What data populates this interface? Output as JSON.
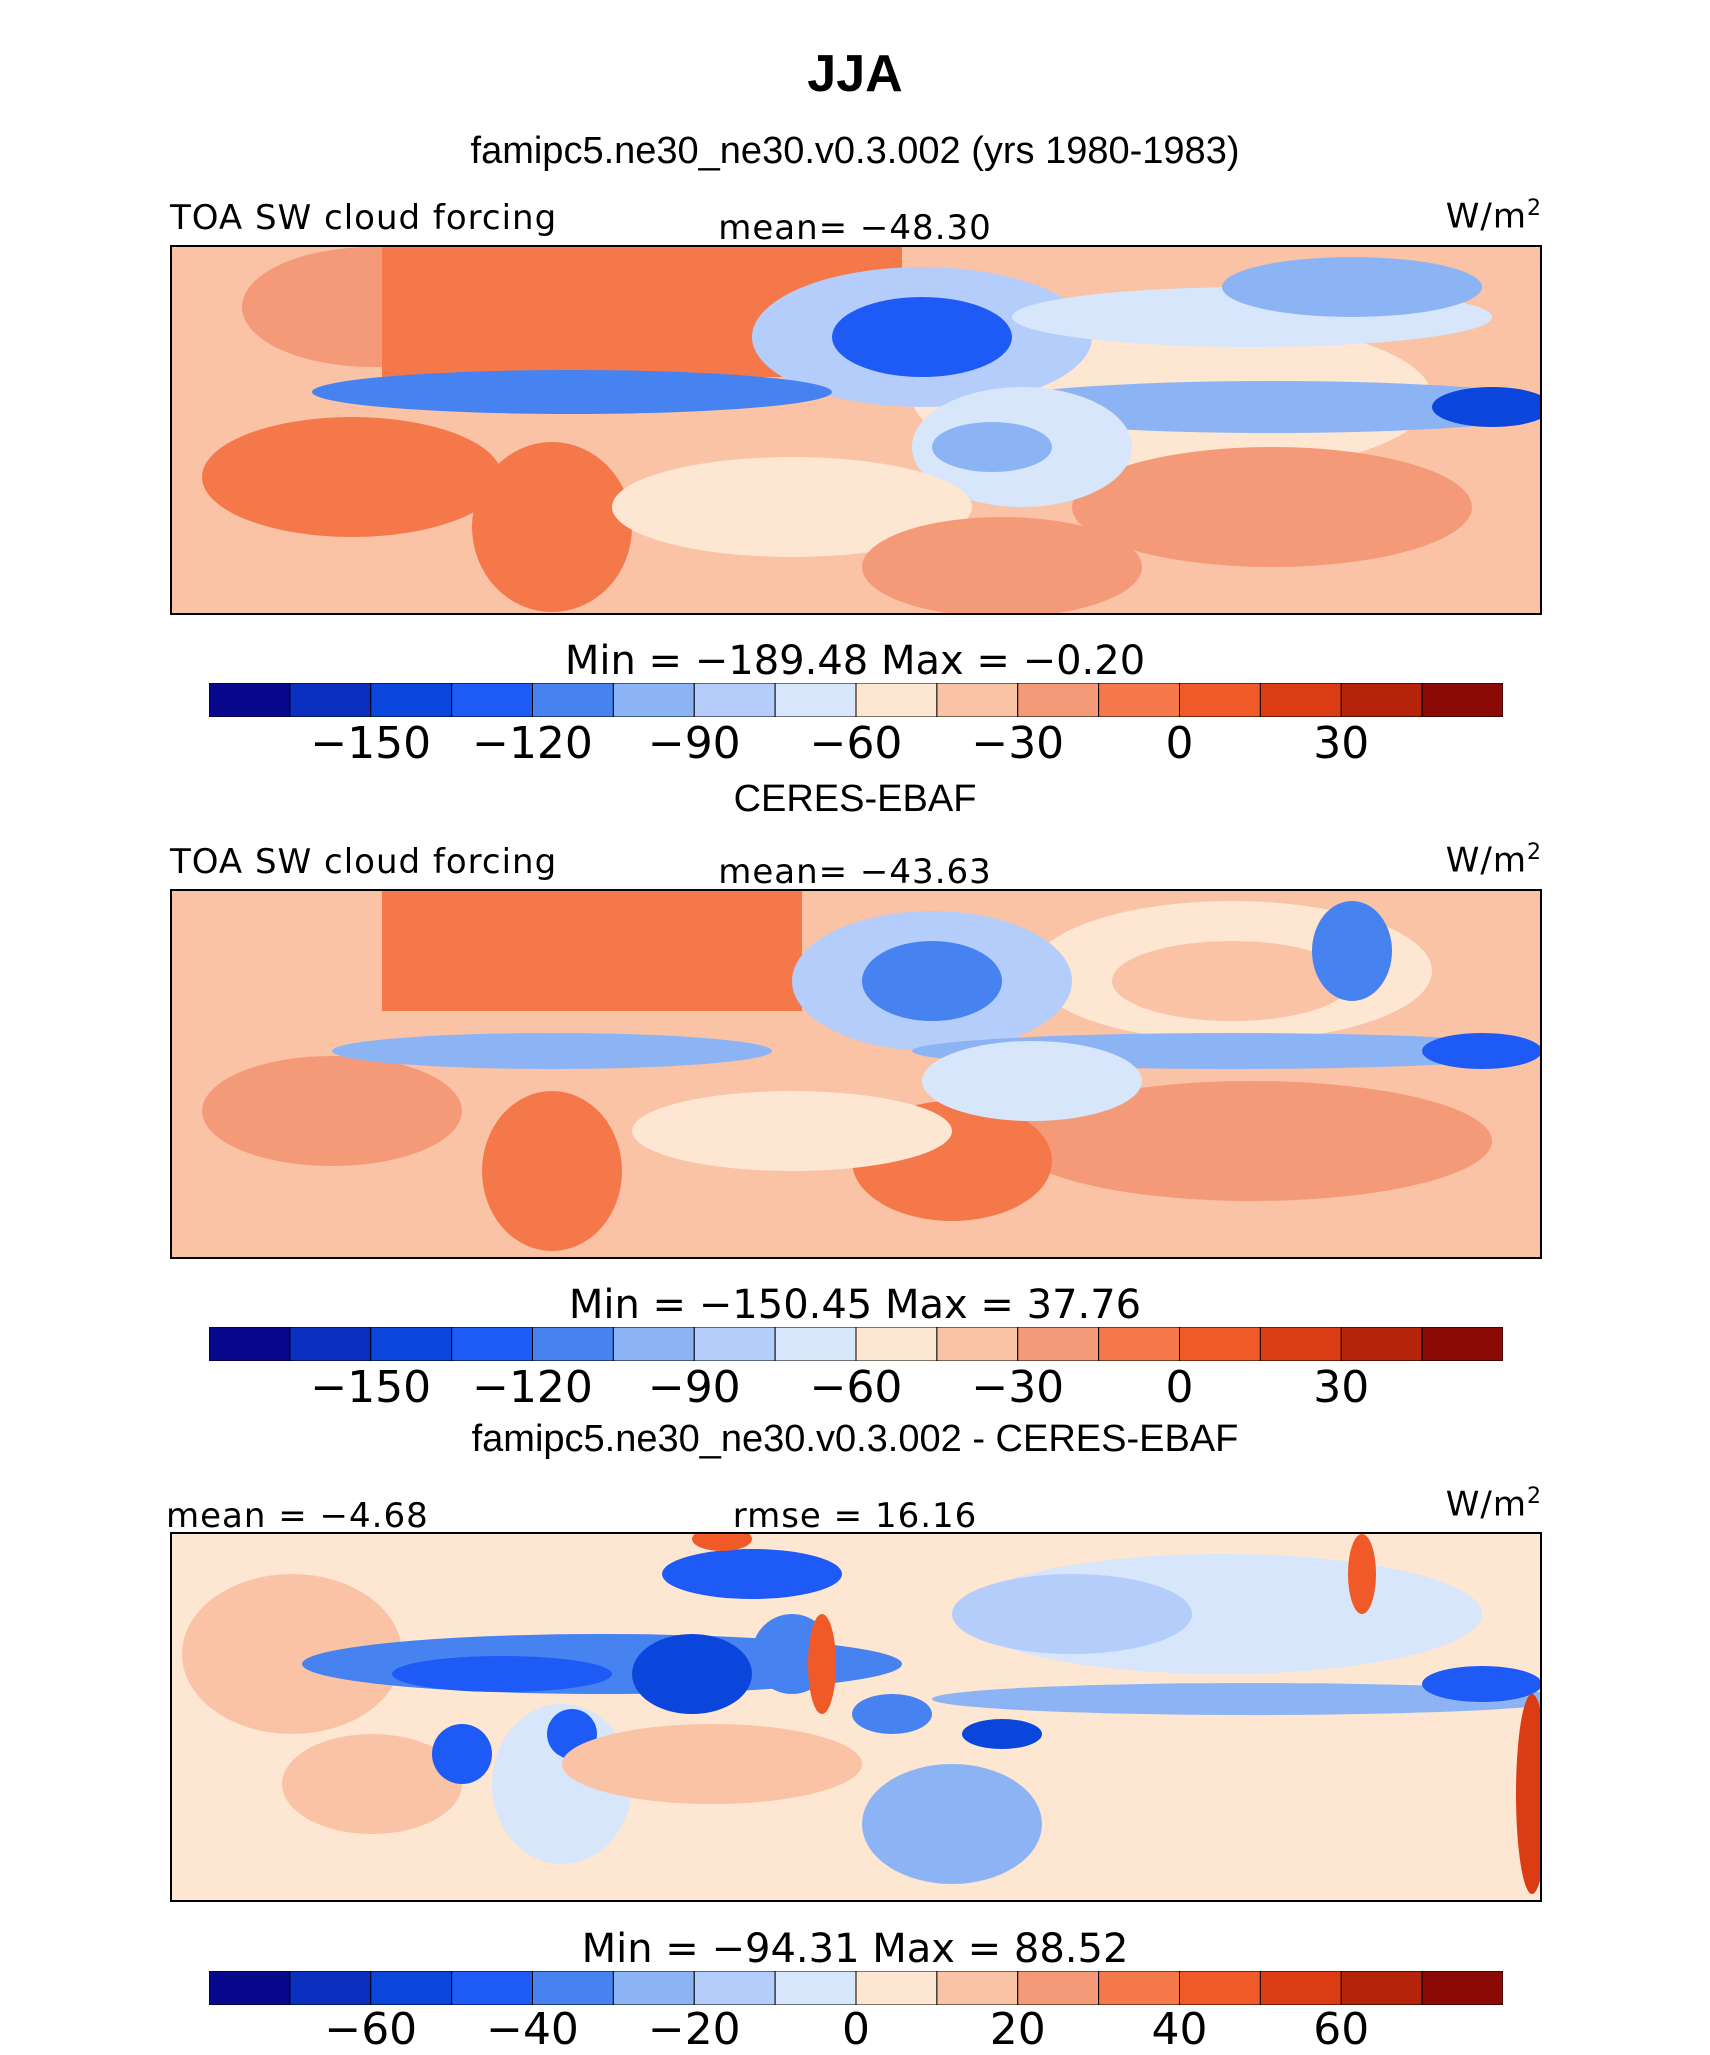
{
  "figure": {
    "title": "JJA",
    "panel1_title": "famipc5.ne30_ne30.v0.3.002 (yrs 1980-1983)",
    "panel2_title": "CERES-EBAF",
    "panel3_title": "famipc5.ne30_ne30.v0.3.002 - CERES-EBAF"
  },
  "chart_data": [
    {
      "type": "heatmap",
      "title": "famipc5.ne30_ne30.v0.3.002 (yrs 1980-1983)",
      "variable": "TOA SW cloud forcing",
      "mean_label": "mean= −48.30",
      "units": "W/m",
      "units_exp": "2",
      "minmax_label": "Min = −189.48 Max = −0.20",
      "min": -189.48,
      "max": -0.2,
      "mean": -48.3,
      "colorbar_ticks": [
        "−150",
        "−120",
        "−90",
        "−60",
        "−30",
        "0",
        "30"
      ],
      "colorbar_tick_values": [
        -150,
        -120,
        -90,
        -60,
        -30,
        0,
        30
      ],
      "colorbar_range": [
        -180,
        60
      ]
    },
    {
      "type": "heatmap",
      "title": "CERES-EBAF",
      "variable": "TOA SW cloud forcing",
      "mean_label": "mean= −43.63",
      "units": "W/m",
      "units_exp": "2",
      "minmax_label": "Min = −150.45 Max = 37.76",
      "min": -150.45,
      "max": 37.76,
      "mean": -43.63,
      "colorbar_ticks": [
        "−150",
        "−120",
        "−90",
        "−60",
        "−30",
        "0",
        "30"
      ],
      "colorbar_tick_values": [
        -150,
        -120,
        -90,
        -60,
        -30,
        0,
        30
      ],
      "colorbar_range": [
        -180,
        60
      ]
    },
    {
      "type": "heatmap",
      "title": "famipc5.ne30_ne30.v0.3.002 - CERES-EBAF",
      "mean_label": "mean = −4.68",
      "rmse_label": "rmse = 16.16",
      "units": "W/m",
      "units_exp": "2",
      "minmax_label": "Min = −94.31 Max = 88.52",
      "min": -94.31,
      "max": 88.52,
      "mean": -4.68,
      "rmse": 16.16,
      "colorbar_ticks": [
        "−60",
        "−40",
        "−20",
        "0",
        "20",
        "40",
        "60"
      ],
      "colorbar_tick_values": [
        -60,
        -40,
        -20,
        0,
        20,
        40,
        60
      ],
      "colorbar_range": [
        -80,
        80
      ]
    }
  ],
  "colors": {
    "palette": [
      "#08088c",
      "#0b2fbe",
      "#0a46dc",
      "#1e5af5",
      "#4682f0",
      "#8cb4f5",
      "#b4cdfa",
      "#d7e6fa",
      "#fde6d2",
      "#fac3a5",
      "#f59a78",
      "#f5784b",
      "#f05a28",
      "#dc3c14",
      "#b4230a",
      "#8c0a05"
    ]
  }
}
